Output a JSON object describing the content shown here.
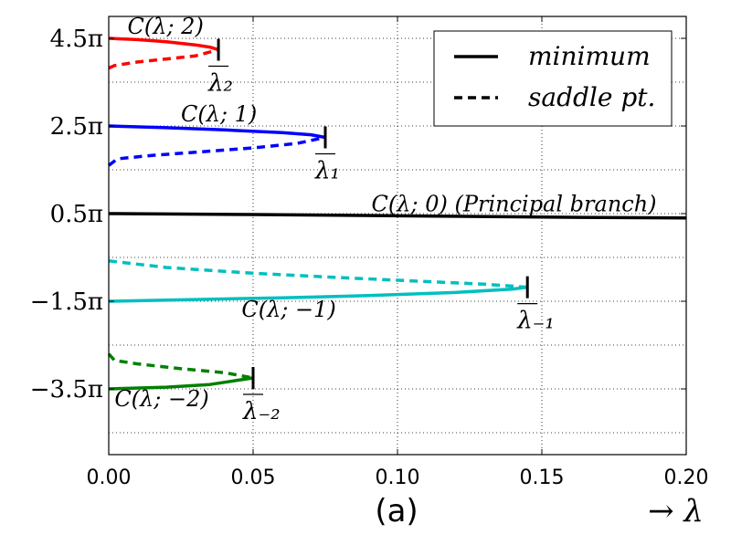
{
  "chart_data": {
    "type": "line",
    "title": "",
    "caption": "(a)",
    "xlabel": "→ λ",
    "xlim": [
      0.0,
      0.2
    ],
    "ylim_units_of_pi": [
      -5.0,
      5.0
    ],
    "x_ticks": [
      {
        "value": 0.0,
        "label": "0.00"
      },
      {
        "value": 0.05,
        "label": "0.05"
      },
      {
        "value": 0.1,
        "label": "0.10"
      },
      {
        "value": 0.15,
        "label": "0.15"
      },
      {
        "value": 0.2,
        "label": "0.20"
      }
    ],
    "y_ticks": [
      {
        "value": 4.5,
        "label": "4.5π"
      },
      {
        "value": 2.5,
        "label": "2.5π"
      },
      {
        "value": 0.5,
        "label": "0.5π"
      },
      {
        "value": -1.5,
        "label": "−1.5π"
      },
      {
        "value": -3.5,
        "label": "−3.5π"
      }
    ],
    "y_minor_gridlines": [
      3.5,
      1.5,
      -0.5,
      -2.5,
      -4.5
    ],
    "grid": true,
    "legend": {
      "placement": "top-right",
      "entries": [
        {
          "label": "minimum",
          "style": "solid"
        },
        {
          "label": "saddle pt.",
          "style": "dashed"
        }
      ]
    },
    "series": [
      {
        "name": "C(λ;2) minimum",
        "color": "#ff0000",
        "style": "solid",
        "points": [
          [
            0.0,
            4.5
          ],
          [
            0.01,
            4.47
          ],
          [
            0.02,
            4.42
          ],
          [
            0.03,
            4.35
          ],
          [
            0.035,
            4.3
          ],
          [
            0.038,
            4.24
          ]
        ]
      },
      {
        "name": "C(λ;2) saddle",
        "color": "#ff0000",
        "style": "dashed",
        "points": [
          [
            0.0,
            3.82
          ],
          [
            0.002,
            3.88
          ],
          [
            0.01,
            3.96
          ],
          [
            0.02,
            4.03
          ],
          [
            0.03,
            4.1
          ],
          [
            0.038,
            4.24
          ]
        ]
      },
      {
        "name": "C(λ;1) minimum",
        "color": "#0000ff",
        "style": "solid",
        "points": [
          [
            0.0,
            2.5
          ],
          [
            0.02,
            2.46
          ],
          [
            0.04,
            2.41
          ],
          [
            0.06,
            2.35
          ],
          [
            0.07,
            2.3
          ],
          [
            0.075,
            2.24
          ]
        ]
      },
      {
        "name": "C(λ;1) saddle",
        "color": "#0000ff",
        "style": "dashed",
        "points": [
          [
            0.0,
            1.6
          ],
          [
            0.003,
            1.75
          ],
          [
            0.015,
            1.83
          ],
          [
            0.03,
            1.9
          ],
          [
            0.05,
            2.0
          ],
          [
            0.065,
            2.1
          ],
          [
            0.075,
            2.24
          ]
        ]
      },
      {
        "name": "C(λ;0) principal",
        "color": "#000000",
        "style": "solid",
        "points": [
          [
            0.0,
            0.5
          ],
          [
            0.05,
            0.48
          ],
          [
            0.1,
            0.45
          ],
          [
            0.15,
            0.42
          ],
          [
            0.2,
            0.4
          ]
        ]
      },
      {
        "name": "C(λ;−1) minimum",
        "color": "#00bfbf",
        "style": "solid",
        "points": [
          [
            0.0,
            -1.5
          ],
          [
            0.03,
            -1.46
          ],
          [
            0.06,
            -1.42
          ],
          [
            0.09,
            -1.37
          ],
          [
            0.12,
            -1.3
          ],
          [
            0.14,
            -1.22
          ],
          [
            0.145,
            -1.18
          ]
        ]
      },
      {
        "name": "C(λ;−1) saddle",
        "color": "#00bfbf",
        "style": "dashed",
        "points": [
          [
            0.0,
            -0.58
          ],
          [
            0.02,
            -0.73
          ],
          [
            0.05,
            -0.86
          ],
          [
            0.08,
            -0.96
          ],
          [
            0.11,
            -1.05
          ],
          [
            0.13,
            -1.11
          ],
          [
            0.145,
            -1.18
          ]
        ]
      },
      {
        "name": "C(λ;−2) minimum",
        "color": "#008000",
        "style": "solid",
        "points": [
          [
            0.0,
            -3.5
          ],
          [
            0.02,
            -3.46
          ],
          [
            0.035,
            -3.4
          ],
          [
            0.045,
            -3.3
          ],
          [
            0.05,
            -3.25
          ]
        ]
      },
      {
        "name": "C(λ;−2) saddle",
        "color": "#008000",
        "style": "dashed",
        "points": [
          [
            0.0,
            -2.7
          ],
          [
            0.002,
            -2.85
          ],
          [
            0.01,
            -2.93
          ],
          [
            0.025,
            -3.04
          ],
          [
            0.04,
            -3.13
          ],
          [
            0.05,
            -3.25
          ]
        ]
      }
    ],
    "turning_points": [
      {
        "label": "λ₂",
        "x": 0.038,
        "y": 4.24
      },
      {
        "label": "λ₁",
        "x": 0.075,
        "y": 2.24
      },
      {
        "label": "λ₋₁",
        "x": 0.145,
        "y": -1.18
      },
      {
        "label": "λ₋₂",
        "x": 0.05,
        "y": -3.25
      }
    ],
    "annotations": [
      {
        "text": "C(λ; 2)",
        "x": 0.0065,
        "y": 4.6
      },
      {
        "text": "C(λ; 1)",
        "x": 0.025,
        "y": 2.6
      },
      {
        "text": "C(λ; 0)  (Principal branch)",
        "x": 0.091,
        "y": 0.55
      },
      {
        "text": "C(λ; −1)",
        "x": 0.046,
        "y": -1.85
      },
      {
        "text": "C(λ; −2)",
        "x": 0.002,
        "y": -3.9
      }
    ]
  }
}
